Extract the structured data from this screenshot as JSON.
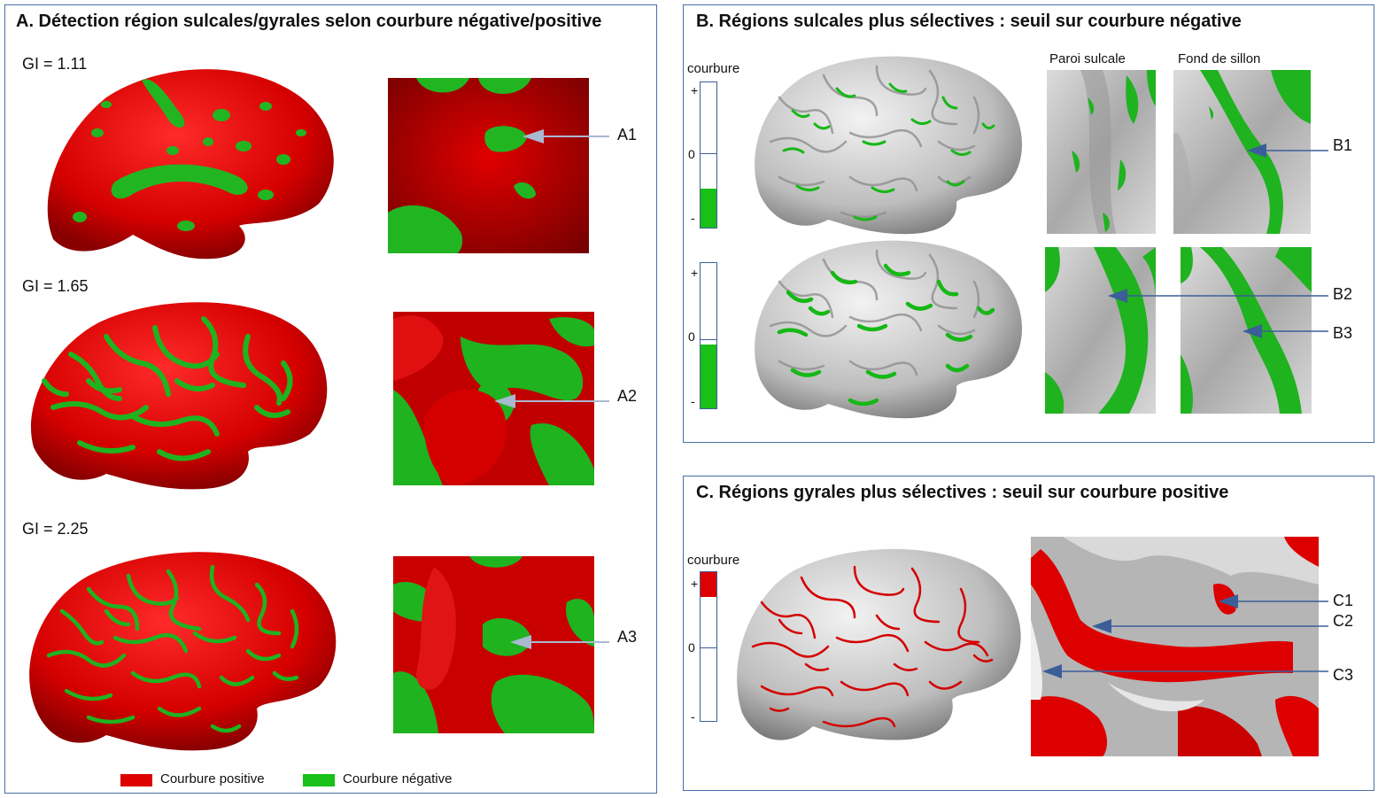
{
  "panel_a": {
    "title": "A. Détection région sulcales/gyrales selon courbure négative/positive",
    "rows": [
      {
        "gi": "GI = 1.11",
        "marker": "A1"
      },
      {
        "gi": "GI = 1.65",
        "marker": "A2"
      },
      {
        "gi": "GI = 2.25",
        "marker": "A3"
      }
    ],
    "legend": {
      "positive": "Courbure positive",
      "negative": "Courbure négative"
    }
  },
  "panel_b": {
    "title": "B. Régions sulcales plus sélectives : seuil sur courbure négative",
    "scale_label": "courbure",
    "ticks": {
      "plus": "+",
      "zero": "0",
      "minus": "-"
    },
    "col_headers": {
      "wall": "Paroi sulcale",
      "fundus": "Fond de sillon"
    },
    "markers": [
      "B1",
      "B2",
      "B3"
    ]
  },
  "panel_c": {
    "title": "C. Régions gyrales plus sélectives : seuil sur courbure positive",
    "scale_label": "courbure",
    "ticks": {
      "plus": "+",
      "zero": "0",
      "minus": "-"
    },
    "markers": [
      "C1",
      "C2",
      "C3"
    ]
  },
  "colors": {
    "positive": "#dd0000",
    "negative": "#18c018",
    "gray_surface": "#c8c8c8",
    "panel_border": "#4a6fa5",
    "arrow": "#3b5e99"
  }
}
